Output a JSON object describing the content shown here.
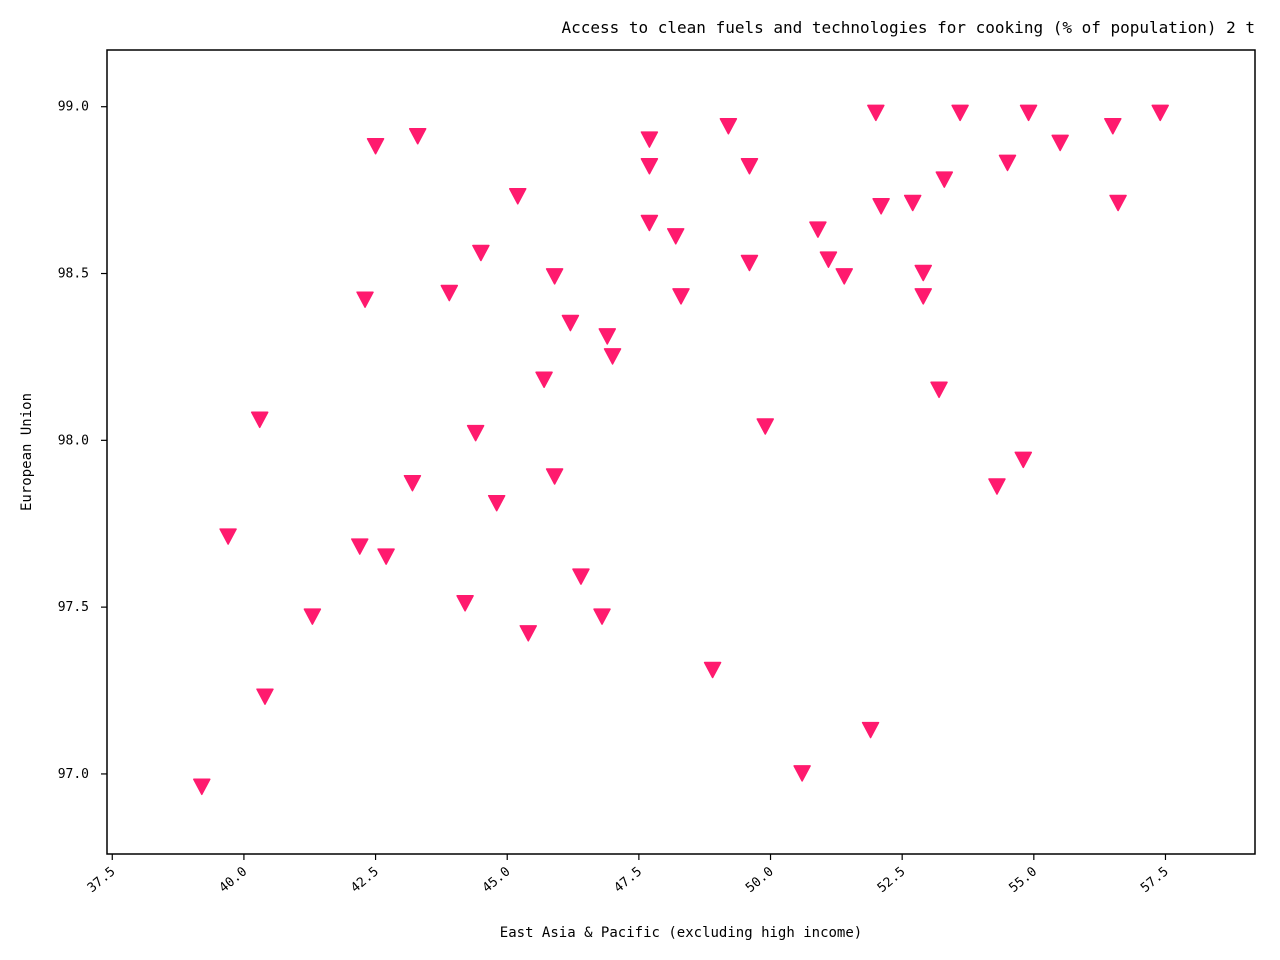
{
  "chart_data": {
    "type": "scatter",
    "title": "Access to clean fuels and technologies for cooking  (% of population) 2 t",
    "xlabel": "East Asia & Pacific (excluding high income)",
    "ylabel": "European Union",
    "xlim": [
      37.4,
      59.2
    ],
    "ylim": [
      96.76,
      99.17
    ],
    "xticks": [
      "37.5",
      "40.0",
      "42.5",
      "45.0",
      "47.5",
      "50.0",
      "52.5",
      "55.0",
      "57.5"
    ],
    "yticks": [
      "97.0",
      "97.5",
      "98.0",
      "98.5",
      "99.0"
    ],
    "grid": false,
    "marker": "triangle-down",
    "color": "#ff1a6e",
    "series": [
      {
        "points": [
          [
            39.2,
            96.96
          ],
          [
            39.7,
            97.71
          ],
          [
            40.3,
            98.06
          ],
          [
            40.4,
            97.23
          ],
          [
            41.3,
            97.47
          ],
          [
            42.2,
            97.68
          ],
          [
            42.3,
            98.42
          ],
          [
            42.5,
            98.88
          ],
          [
            42.7,
            97.65
          ],
          [
            43.2,
            97.87
          ],
          [
            43.3,
            98.91
          ],
          [
            43.9,
            98.44
          ],
          [
            44.2,
            97.51
          ],
          [
            44.4,
            98.02
          ],
          [
            44.5,
            98.56
          ],
          [
            44.8,
            97.81
          ],
          [
            45.2,
            98.73
          ],
          [
            45.4,
            97.42
          ],
          [
            45.7,
            98.18
          ],
          [
            45.9,
            98.49
          ],
          [
            45.9,
            97.89
          ],
          [
            46.2,
            98.35
          ],
          [
            46.4,
            97.59
          ],
          [
            46.8,
            97.47
          ],
          [
            46.9,
            98.31
          ],
          [
            47.0,
            98.25
          ],
          [
            47.7,
            98.9
          ],
          [
            47.7,
            98.82
          ],
          [
            47.7,
            98.65
          ],
          [
            48.2,
            98.61
          ],
          [
            48.3,
            98.43
          ],
          [
            48.9,
            97.31
          ],
          [
            49.2,
            98.94
          ],
          [
            49.6,
            98.82
          ],
          [
            49.6,
            98.53
          ],
          [
            49.9,
            98.04
          ],
          [
            50.6,
            97.0
          ],
          [
            50.9,
            98.63
          ],
          [
            51.1,
            98.54
          ],
          [
            51.4,
            98.49
          ],
          [
            51.9,
            97.13
          ],
          [
            52.0,
            98.98
          ],
          [
            52.1,
            98.7
          ],
          [
            52.7,
            98.71
          ],
          [
            52.9,
            98.5
          ],
          [
            52.9,
            98.43
          ],
          [
            53.2,
            98.15
          ],
          [
            53.3,
            98.78
          ],
          [
            53.6,
            98.98
          ],
          [
            54.3,
            97.86
          ],
          [
            54.5,
            98.83
          ],
          [
            54.8,
            97.94
          ],
          [
            54.9,
            98.98
          ],
          [
            55.5,
            98.89
          ],
          [
            56.5,
            98.94
          ],
          [
            56.6,
            98.71
          ],
          [
            57.4,
            98.98
          ]
        ]
      }
    ]
  }
}
